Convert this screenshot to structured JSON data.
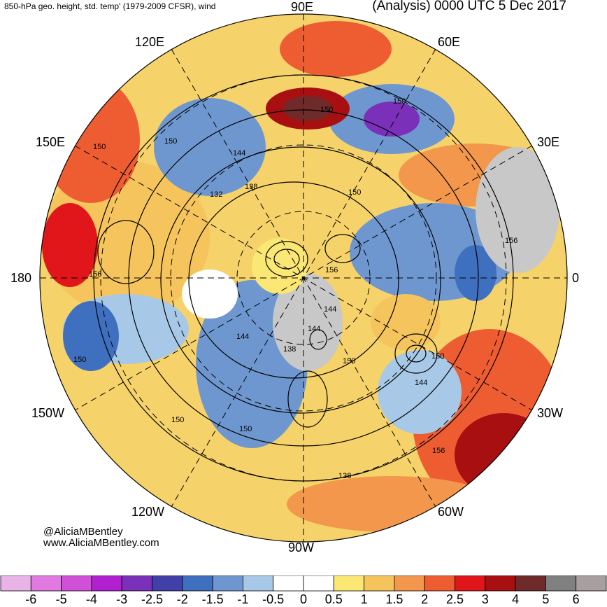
{
  "header": {
    "left_title": "850-hPa geo. height, std. temp' (1979-2009 CFSR), wind",
    "right_title": "(Analysis) 0000 UTC 5 Dec 2017"
  },
  "credits": {
    "handle": "@AliciaMBentley",
    "website": "www.AliciaMBentley.com"
  },
  "longitude_labels": {
    "lon_90E": "90E",
    "lon_60E": "60E",
    "lon_120E": "120E",
    "lon_30E": "30E",
    "lon_150E": "150E",
    "lon_180": "180",
    "lon_0": "0",
    "lon_150W": "150W",
    "lon_30W": "30W",
    "lon_120W": "120W",
    "lon_60W": "60W",
    "lon_90W": "90W"
  },
  "contour_labels": [
    "150",
    "150",
    "150",
    "150",
    "156",
    "156",
    "132",
    "138",
    "144",
    "150",
    "144",
    "144",
    "138",
    "150",
    "150",
    "144",
    "150",
    "150",
    "150",
    "156",
    "138",
    "156",
    "144"
  ],
  "colorbar": {
    "labels": [
      "-6",
      "-5",
      "-4",
      "-3",
      "-2.5",
      "-2",
      "-1.5",
      "-1",
      "-0.5",
      "0",
      "0.5",
      "1",
      "1.5",
      "2",
      "2.5",
      "3",
      "4",
      "5",
      "6"
    ],
    "colors": [
      "#e8b4e8",
      "#e07ae0",
      "#d050d8",
      "#b020d0",
      "#7a30b8",
      "#4040a8",
      "#3f6fbf",
      "#6f97cf",
      "#a7c9e7",
      "#ffffff",
      "#ffffff",
      "#fbe773",
      "#f5c45d",
      "#f2974b",
      "#ee5c32",
      "#e0161a",
      "#a80f10",
      "#6f2a2a",
      "#808080",
      "#a8a0a0"
    ]
  },
  "colors": {
    "cold": "#3f6fbf",
    "warm": "#f2974b",
    "land_gray": "#c8c8c8"
  }
}
